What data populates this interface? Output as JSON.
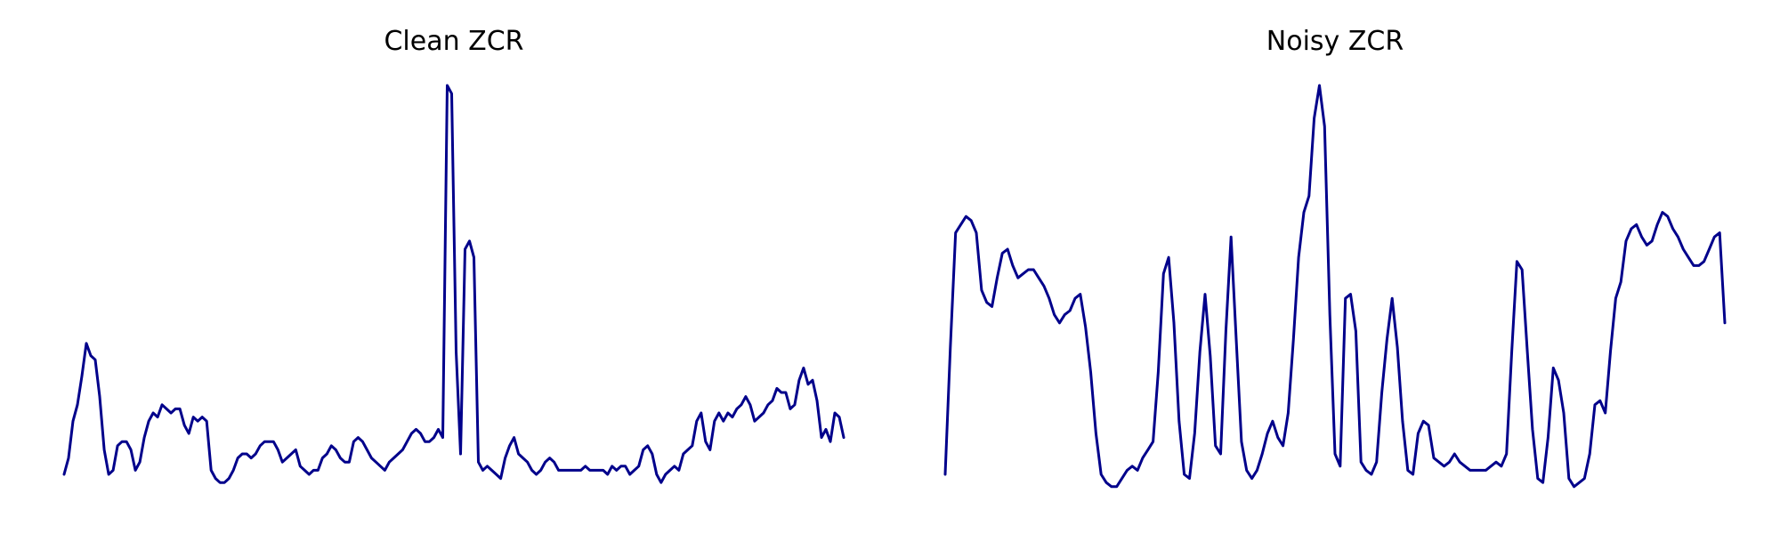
{
  "chart_data": [
    {
      "type": "line",
      "title": "Clean ZCR",
      "xlabel": "",
      "ylabel": "",
      "grid": false,
      "axes_visible": false,
      "line_color": "#00008b",
      "ylim": [
        0,
        1
      ],
      "values": [
        0.05,
        0.09,
        0.18,
        0.22,
        0.29,
        0.37,
        0.34,
        0.33,
        0.24,
        0.11,
        0.05,
        0.06,
        0.12,
        0.13,
        0.13,
        0.11,
        0.06,
        0.08,
        0.14,
        0.18,
        0.2,
        0.19,
        0.22,
        0.21,
        0.2,
        0.21,
        0.21,
        0.17,
        0.15,
        0.19,
        0.18,
        0.19,
        0.18,
        0.06,
        0.04,
        0.03,
        0.03,
        0.04,
        0.06,
        0.09,
        0.1,
        0.1,
        0.09,
        0.1,
        0.12,
        0.13,
        0.13,
        0.13,
        0.11,
        0.08,
        0.09,
        0.1,
        0.11,
        0.07,
        0.06,
        0.05,
        0.06,
        0.06,
        0.09,
        0.1,
        0.12,
        0.11,
        0.09,
        0.08,
        0.08,
        0.13,
        0.14,
        0.13,
        0.11,
        0.09,
        0.08,
        0.07,
        0.06,
        0.08,
        0.09,
        0.1,
        0.11,
        0.13,
        0.15,
        0.16,
        0.15,
        0.13,
        0.13,
        0.14,
        0.16,
        0.14,
        1.0,
        0.98,
        0.35,
        0.1,
        0.6,
        0.62,
        0.58,
        0.08,
        0.06,
        0.07,
        0.06,
        0.05,
        0.04,
        0.09,
        0.12,
        0.14,
        0.1,
        0.09,
        0.08,
        0.06,
        0.05,
        0.06,
        0.08,
        0.09,
        0.08,
        0.06,
        0.06,
        0.06,
        0.06,
        0.06,
        0.06,
        0.07,
        0.06,
        0.06,
        0.06,
        0.06,
        0.05,
        0.07,
        0.06,
        0.07,
        0.07,
        0.05,
        0.06,
        0.07,
        0.11,
        0.12,
        0.1,
        0.05,
        0.03,
        0.05,
        0.06,
        0.07,
        0.06,
        0.1,
        0.11,
        0.12,
        0.18,
        0.2,
        0.13,
        0.11,
        0.18,
        0.2,
        0.18,
        0.2,
        0.19,
        0.21,
        0.22,
        0.24,
        0.22,
        0.18,
        0.19,
        0.2,
        0.22,
        0.23,
        0.26,
        0.25,
        0.25,
        0.21,
        0.22,
        0.28,
        0.31,
        0.27,
        0.28,
        0.23,
        0.14,
        0.16,
        0.13,
        0.2,
        0.19,
        0.14
      ]
    },
    {
      "type": "line",
      "title": "Noisy ZCR",
      "xlabel": "",
      "ylabel": "",
      "grid": false,
      "axes_visible": false,
      "line_color": "#00008b",
      "ylim": [
        0,
        1
      ],
      "values": [
        0.05,
        0.36,
        0.64,
        0.66,
        0.68,
        0.67,
        0.64,
        0.5,
        0.47,
        0.46,
        0.53,
        0.59,
        0.6,
        0.56,
        0.53,
        0.54,
        0.55,
        0.55,
        0.53,
        0.51,
        0.48,
        0.44,
        0.42,
        0.44,
        0.45,
        0.48,
        0.49,
        0.41,
        0.3,
        0.15,
        0.05,
        0.03,
        0.02,
        0.02,
        0.04,
        0.06,
        0.07,
        0.06,
        0.09,
        0.11,
        0.13,
        0.3,
        0.54,
        0.58,
        0.42,
        0.18,
        0.05,
        0.04,
        0.15,
        0.35,
        0.49,
        0.34,
        0.12,
        0.1,
        0.4,
        0.63,
        0.38,
        0.13,
        0.06,
        0.04,
        0.06,
        0.1,
        0.15,
        0.18,
        0.14,
        0.12,
        0.2,
        0.38,
        0.58,
        0.69,
        0.73,
        0.92,
        1.0,
        0.9,
        0.44,
        0.1,
        0.07,
        0.48,
        0.49,
        0.4,
        0.08,
        0.06,
        0.05,
        0.08,
        0.25,
        0.38,
        0.48,
        0.36,
        0.18,
        0.06,
        0.05,
        0.15,
        0.18,
        0.17,
        0.09,
        0.08,
        0.07,
        0.08,
        0.1,
        0.08,
        0.07,
        0.06,
        0.06,
        0.06,
        0.06,
        0.07,
        0.08,
        0.07,
        0.1,
        0.35,
        0.57,
        0.55,
        0.35,
        0.16,
        0.04,
        0.03,
        0.14,
        0.31,
        0.28,
        0.2,
        0.04,
        0.02,
        0.03,
        0.04,
        0.1,
        0.22,
        0.23,
        0.2,
        0.35,
        0.48,
        0.52,
        0.62,
        0.65,
        0.66,
        0.63,
        0.61,
        0.62,
        0.66,
        0.69,
        0.68,
        0.65,
        0.63,
        0.6,
        0.58,
        0.56,
        0.56,
        0.57,
        0.6,
        0.63,
        0.64,
        0.42
      ]
    }
  ]
}
